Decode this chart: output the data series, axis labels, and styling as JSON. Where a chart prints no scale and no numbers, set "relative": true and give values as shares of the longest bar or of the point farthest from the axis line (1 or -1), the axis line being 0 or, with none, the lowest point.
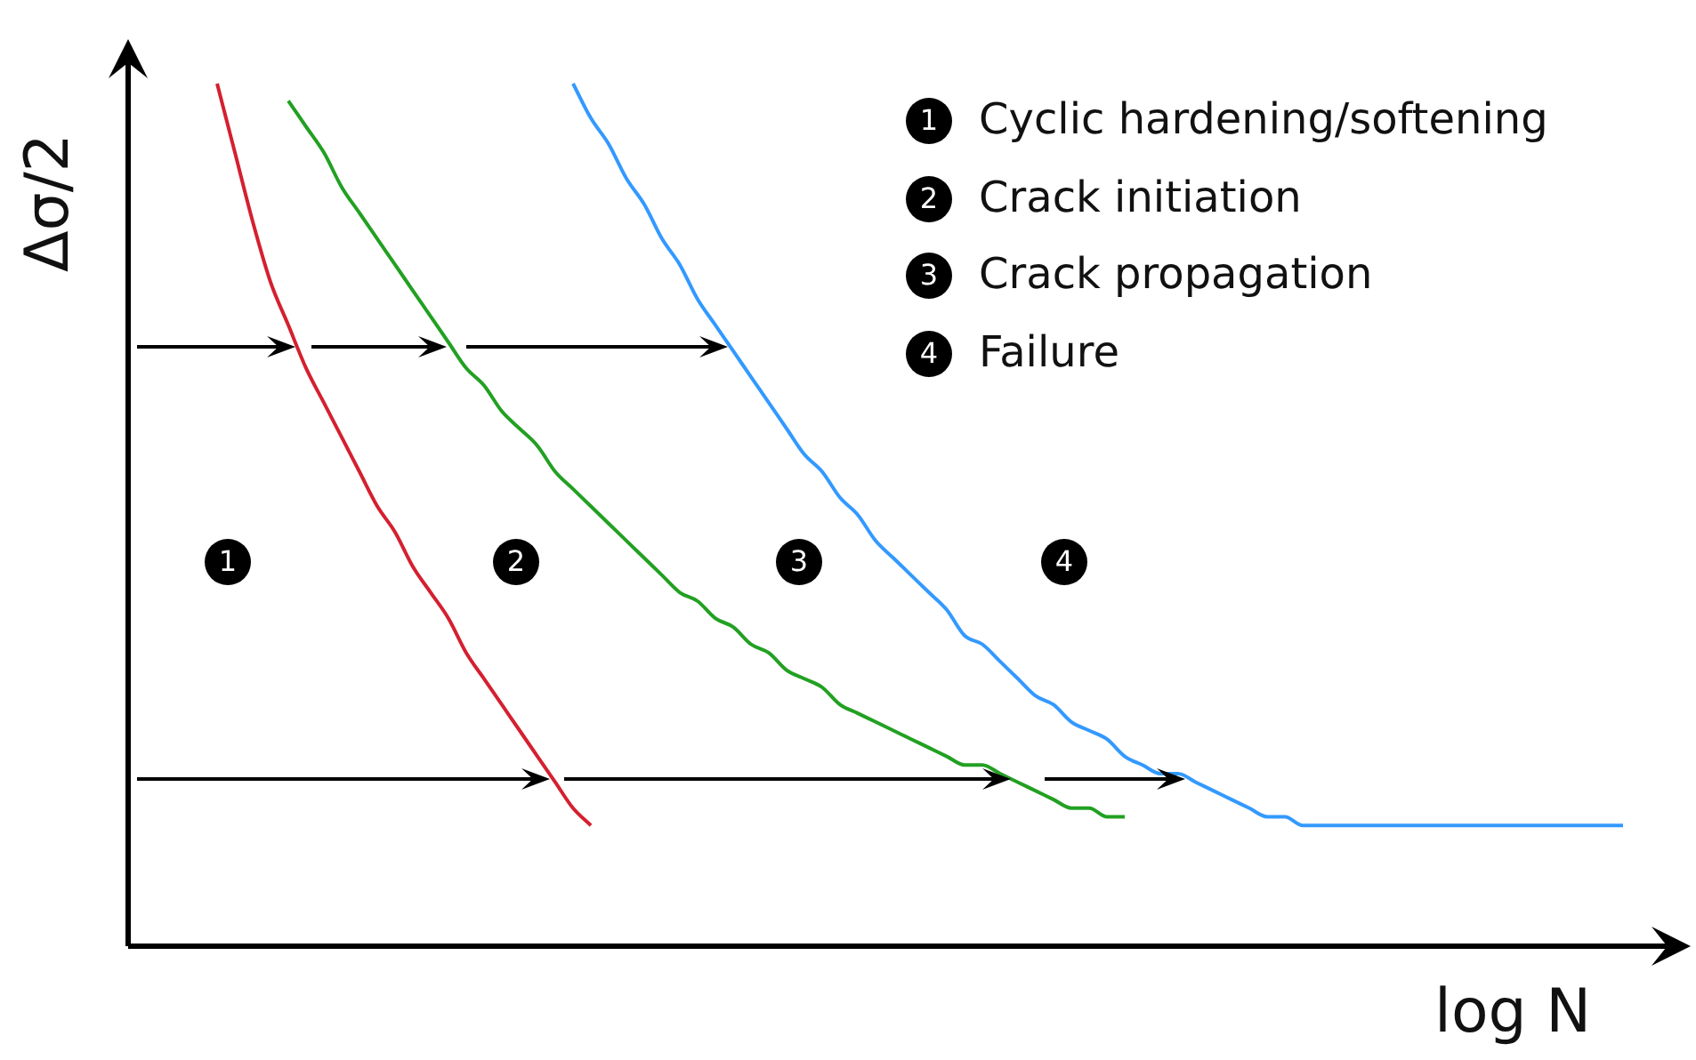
{
  "chart_data": {
    "type": "line",
    "relative": true,
    "xlabel": "log N",
    "ylabel": "Δσ/2",
    "legend": false,
    "marker": "none",
    "line_style": "solid",
    "categories": [
      null,
      null,
      null,
      null,
      null,
      null,
      null,
      null,
      null,
      null,
      null,
      null,
      null,
      null,
      null,
      null,
      null,
      null,
      null,
      null,
      null,
      null,
      null,
      null,
      null,
      null,
      null,
      null,
      null,
      null,
      null,
      null,
      null,
      null,
      null,
      null,
      null,
      null,
      null,
      null,
      null,
      null,
      null,
      null,
      null,
      null,
      null,
      null,
      null,
      null,
      null,
      null,
      null,
      null,
      null,
      null,
      null,
      null,
      null,
      null,
      null,
      null,
      null,
      null,
      null,
      null,
      null,
      null,
      null,
      null,
      null,
      null,
      null,
      null,
      null,
      null,
      null,
      null,
      null,
      null,
      null,
      null,
      null,
      null,
      null
    ],
    "series": [
      {
        "color": "#d42030",
        "values": [
          null,
          null,
          null,
          null,
          null,
          1.0,
          0.92,
          0.84,
          0.77,
          0.72,
          0.67,
          0.63,
          0.59,
          0.55,
          0.51,
          0.48,
          0.44,
          0.41,
          0.38,
          0.34,
          0.31,
          0.28,
          0.25,
          0.22,
          0.19,
          0.16,
          0.14,
          null,
          null,
          null,
          null,
          null,
          null,
          null,
          null,
          null,
          null,
          null,
          null,
          null,
          null,
          null,
          null,
          null,
          null,
          null,
          null,
          null,
          null,
          null,
          null,
          null,
          null,
          null,
          null,
          null,
          null,
          null,
          null,
          null,
          null,
          null,
          null,
          null,
          null,
          null,
          null,
          null,
          null,
          null,
          null,
          null,
          null,
          null,
          null,
          null,
          null,
          null,
          null,
          null,
          null,
          null,
          null,
          null,
          null
        ]
      },
      {
        "color": "#22a022",
        "values": [
          null,
          null,
          null,
          null,
          null,
          null,
          null,
          null,
          null,
          0.98,
          0.95,
          0.92,
          0.88,
          0.85,
          0.82,
          0.79,
          0.76,
          0.73,
          0.7,
          0.67,
          0.65,
          0.62,
          0.6,
          0.58,
          0.55,
          0.53,
          0.51,
          0.49,
          0.47,
          0.45,
          0.43,
          0.41,
          0.4,
          0.38,
          0.37,
          0.35,
          0.34,
          0.32,
          0.31,
          0.3,
          0.28,
          0.27,
          0.26,
          0.25,
          0.24,
          0.23,
          0.22,
          0.21,
          0.21,
          0.2,
          0.19,
          0.18,
          0.17,
          0.16,
          0.16,
          0.15,
          0.15,
          null,
          null,
          null,
          null,
          null,
          null,
          null,
          null,
          null,
          null,
          null,
          null,
          null,
          null,
          null,
          null,
          null,
          null,
          null,
          null,
          null,
          null,
          null,
          null,
          null,
          null,
          null,
          null
        ]
      },
      {
        "color": "#3399ff",
        "values": [
          null,
          null,
          null,
          null,
          null,
          null,
          null,
          null,
          null,
          null,
          null,
          null,
          null,
          null,
          null,
          null,
          null,
          null,
          null,
          null,
          null,
          null,
          null,
          null,
          null,
          1.0,
          0.96,
          0.93,
          0.89,
          0.86,
          0.82,
          0.79,
          0.75,
          0.72,
          0.69,
          0.66,
          0.63,
          0.6,
          0.57,
          0.55,
          0.52,
          0.5,
          0.47,
          0.45,
          0.43,
          0.41,
          0.39,
          0.36,
          0.35,
          0.33,
          0.31,
          0.29,
          0.28,
          0.26,
          0.25,
          0.24,
          0.22,
          0.21,
          0.2,
          0.2,
          0.19,
          0.18,
          0.17,
          0.16,
          0.15,
          0.15,
          0.14,
          0.14,
          0.14,
          0.14,
          0.14,
          0.14,
          0.14,
          0.14,
          0.14,
          0.14,
          0.14,
          0.14,
          0.14,
          0.14,
          0.14,
          0.14,
          0.14,
          0.14,
          0.14
        ]
      }
    ],
    "annotations": [
      "1",
      "2",
      "3",
      "4",
      "Cyclic hardening/softening",
      "Crack initiation",
      "Crack propagation",
      "Failure"
    ]
  }
}
